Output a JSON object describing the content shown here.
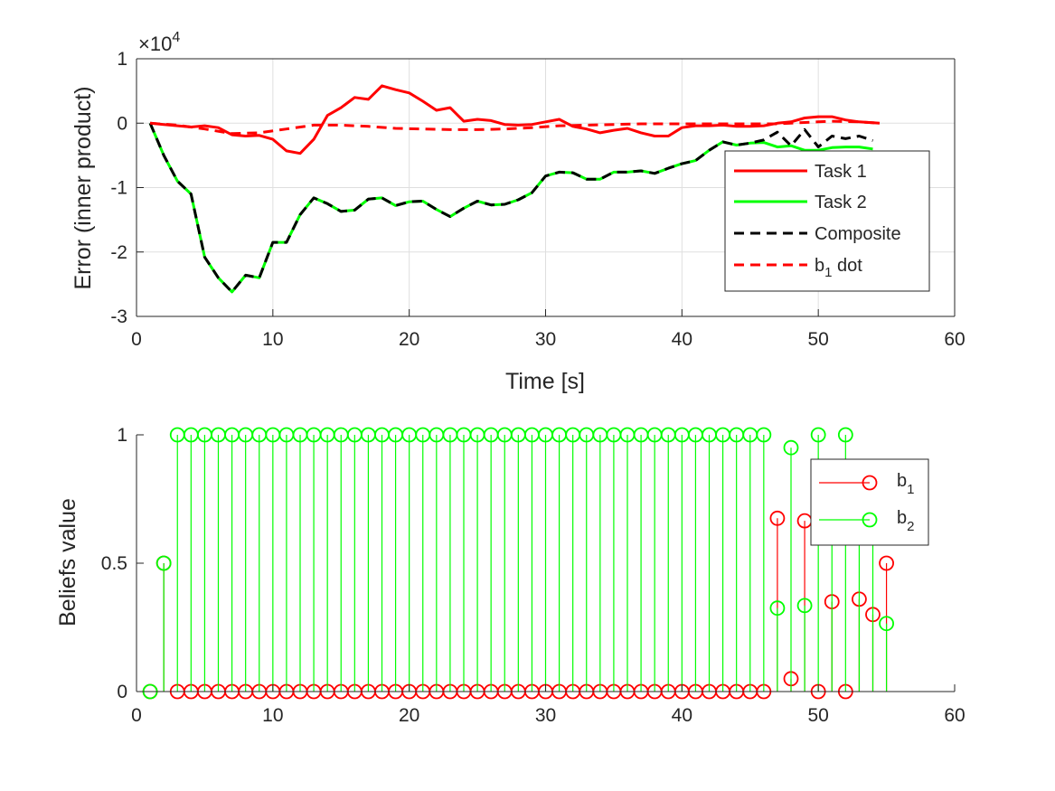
{
  "chart_data": [
    {
      "type": "line",
      "title": "",
      "xlabel": "Time [s]",
      "ylabel": "Error (inner product)",
      "exponent_label": "×10",
      "exponent_power": "4",
      "xlim": [
        0,
        60
      ],
      "ylim": [
        -30000,
        10000
      ],
      "xticks": [
        "0",
        "10",
        "20",
        "30",
        "40",
        "50",
        "60"
      ],
      "yticks": [
        "1",
        "0",
        "-1",
        "-2",
        "-3"
      ],
      "ytick_values": [
        10000,
        0,
        -10000,
        -20000,
        -30000
      ],
      "grid": true,
      "legend_position": "right",
      "series": [
        {
          "name": "Task 1",
          "color": "#ff0000",
          "style": "solid",
          "x": [
            1,
            2,
            3,
            4,
            5,
            6,
            7,
            8,
            9,
            10,
            11,
            12,
            13,
            14,
            15,
            16,
            17,
            18,
            19,
            20,
            21,
            22,
            23,
            24,
            25,
            26,
            27,
            28,
            29,
            30,
            31,
            32,
            33,
            34,
            35,
            36,
            37,
            38,
            39,
            40,
            41,
            42,
            43,
            44,
            45,
            46,
            47,
            48,
            49,
            50,
            51,
            52,
            53,
            54.5
          ],
          "y": [
            0,
            -200,
            -400,
            -600,
            -400,
            -700,
            -1800,
            -2000,
            -1900,
            -2500,
            -4300,
            -4700,
            -2500,
            1200,
            2400,
            4000,
            3700,
            5800,
            5200,
            4700,
            3400,
            2000,
            2400,
            300,
            600,
            400,
            -200,
            -300,
            -200,
            200,
            600,
            -500,
            -900,
            -1500,
            -1100,
            -800,
            -1500,
            -2000,
            -2000,
            -700,
            -400,
            -400,
            -300,
            -500,
            -500,
            -400,
            0,
            200,
            800,
            1000,
            1000,
            500,
            200,
            0
          ]
        },
        {
          "name": "Task 2",
          "color": "#00ff00",
          "style": "solid",
          "x": [
            1,
            2,
            3,
            4,
            5,
            6,
            7,
            8,
            9,
            10,
            11,
            12,
            13,
            14,
            15,
            16,
            17,
            18,
            19,
            20,
            21,
            22,
            23,
            24,
            25,
            26,
            27,
            28,
            29,
            30,
            31,
            32,
            33,
            34,
            35,
            36,
            37,
            38,
            39,
            40,
            41,
            42,
            43,
            44,
            45,
            46,
            47,
            48,
            49,
            50,
            51,
            52,
            53,
            54
          ],
          "y": [
            0,
            -5000,
            -9000,
            -11000,
            -20800,
            -24000,
            -26200,
            -23600,
            -24000,
            -18500,
            -18500,
            -14200,
            -11600,
            -12500,
            -13700,
            -13500,
            -11800,
            -11600,
            -12800,
            -12200,
            -12100,
            -13400,
            -14500,
            -13200,
            -12100,
            -12700,
            -12600,
            -11900,
            -10800,
            -8200,
            -7600,
            -7700,
            -8700,
            -8700,
            -7600,
            -7600,
            -7400,
            -7800,
            -7000,
            -6300,
            -5800,
            -4200,
            -2900,
            -3400,
            -3100,
            -3000,
            -3700,
            -3500,
            -4200,
            -4200,
            -3800,
            -3700,
            -3700,
            -4000
          ]
        },
        {
          "name": "Composite",
          "color": "#000000",
          "style": "dashed",
          "x": [
            1,
            2,
            3,
            4,
            5,
            6,
            7,
            8,
            9,
            10,
            11,
            12,
            13,
            14,
            15,
            16,
            17,
            18,
            19,
            20,
            21,
            22,
            23,
            24,
            25,
            26,
            27,
            28,
            29,
            30,
            31,
            32,
            33,
            34,
            35,
            36,
            37,
            38,
            39,
            40,
            41,
            42,
            43,
            44,
            45,
            46,
            47,
            48,
            49,
            50,
            51,
            52,
            53,
            54
          ],
          "y": [
            0,
            -5000,
            -9000,
            -11000,
            -20800,
            -24000,
            -26200,
            -23600,
            -24000,
            -18500,
            -18500,
            -14200,
            -11600,
            -12500,
            -13700,
            -13500,
            -11800,
            -11600,
            -12800,
            -12200,
            -12100,
            -13400,
            -14500,
            -13200,
            -12100,
            -12700,
            -12600,
            -11900,
            -10800,
            -8200,
            -7600,
            -7700,
            -8700,
            -8700,
            -7600,
            -7600,
            -7400,
            -7800,
            -7000,
            -6300,
            -5800,
            -4200,
            -2900,
            -3400,
            -3100,
            -2600,
            -1400,
            -3500,
            -1000,
            -3700,
            -2000,
            -2400,
            -2000,
            -2700
          ]
        },
        {
          "name": "b dot",
          "name_main": "b",
          "name_sub": "1",
          "name_suffix": " dot",
          "color": "#ff0000",
          "style": "dashed",
          "x": [
            1,
            3,
            5,
            7,
            9,
            11,
            13,
            15,
            17,
            19,
            21,
            23,
            25,
            27,
            29,
            31,
            33,
            35,
            37,
            39,
            41,
            43,
            45,
            47,
            49,
            51,
            53,
            54.5
          ],
          "y": [
            0,
            -300,
            -900,
            -1600,
            -1500,
            -900,
            -300,
            -300,
            -500,
            -800,
            -900,
            -1000,
            -1000,
            -900,
            -700,
            -400,
            -300,
            -200,
            -100,
            -100,
            -100,
            -100,
            -100,
            -100,
            100,
            300,
            200,
            0
          ]
        }
      ]
    },
    {
      "type": "stem",
      "title": "",
      "xlabel": "",
      "ylabel": "Beliefs value",
      "xlim": [
        0,
        60
      ],
      "ylim": [
        0,
        1
      ],
      "xticks": [
        "0",
        "10",
        "20",
        "30",
        "40",
        "50",
        "60"
      ],
      "yticks": [
        "1",
        "0.5",
        "0"
      ],
      "ytick_values": [
        1,
        0.5,
        0
      ],
      "grid": false,
      "legend_position": "top-right",
      "x": [
        1,
        2,
        3,
        4,
        5,
        6,
        7,
        8,
        9,
        10,
        11,
        12,
        13,
        14,
        15,
        16,
        17,
        18,
        19,
        20,
        21,
        22,
        23,
        24,
        25,
        26,
        27,
        28,
        29,
        30,
        31,
        32,
        33,
        34,
        35,
        36,
        37,
        38,
        39,
        40,
        41,
        42,
        43,
        44,
        45,
        46,
        47,
        48,
        49,
        50,
        51,
        52,
        53,
        54,
        55
      ],
      "series": [
        {
          "name": "b",
          "name_sub": "1",
          "color": "#ff0000",
          "values": [
            0,
            0.5,
            0,
            0,
            0,
            0,
            0,
            0,
            0,
            0,
            0,
            0,
            0,
            0,
            0,
            0,
            0,
            0,
            0,
            0,
            0,
            0,
            0,
            0,
            0,
            0,
            0,
            0,
            0,
            0,
            0,
            0,
            0,
            0,
            0,
            0,
            0,
            0,
            0,
            0,
            0,
            0,
            0,
            0,
            0,
            0,
            0.675,
            0.05,
            0.665,
            0,
            0.35,
            0,
            0.36,
            0.3,
            0.5
          ]
        },
        {
          "name": "b",
          "name_sub": "2",
          "color": "#00ff00",
          "values": [
            0,
            0.5,
            1,
            1,
            1,
            1,
            1,
            1,
            1,
            1,
            1,
            1,
            1,
            1,
            1,
            1,
            1,
            1,
            1,
            1,
            1,
            1,
            1,
            1,
            1,
            1,
            1,
            1,
            1,
            1,
            1,
            1,
            1,
            1,
            1,
            1,
            1,
            1,
            1,
            1,
            1,
            1,
            1,
            1,
            1,
            1,
            0.325,
            0.95,
            0.335,
            1,
            0.65,
            1,
            0.64,
            0.7,
            0.265
          ]
        }
      ]
    }
  ]
}
